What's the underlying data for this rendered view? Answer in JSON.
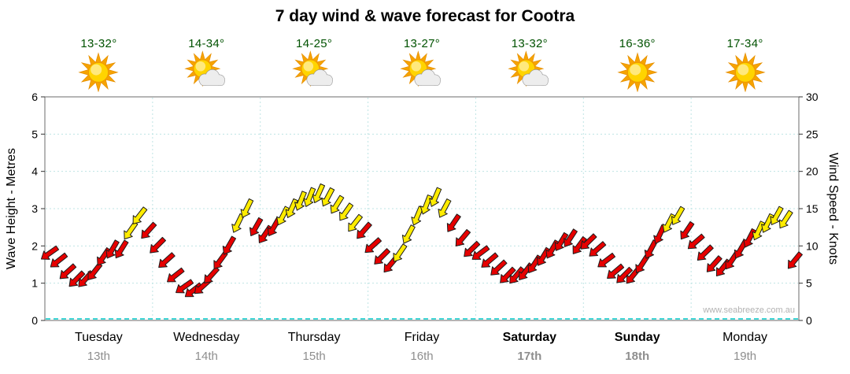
{
  "title": "7 day wind & wave forecast for Cootra",
  "watermark": "www.seabreeze.com.au",
  "axes": {
    "left_label": "Wave Height - Metres",
    "right_label": "Wind Speed - Knots",
    "left_ticks": [
      0,
      1,
      2,
      3,
      4,
      5,
      6
    ],
    "right_ticks": [
      0,
      5,
      10,
      15,
      20,
      25,
      30
    ]
  },
  "days": [
    {
      "name": "Tuesday",
      "date": "13th",
      "temp": "13-32°",
      "icon": "sunny",
      "weekend": false
    },
    {
      "name": "Wednesday",
      "date": "14th",
      "temp": "14-34°",
      "icon": "sun-cloud",
      "weekend": false
    },
    {
      "name": "Thursday",
      "date": "15th",
      "temp": "14-25°",
      "icon": "sun-cloud",
      "weekend": false
    },
    {
      "name": "Friday",
      "date": "16th",
      "temp": "13-27°",
      "icon": "sun-cloud",
      "weekend": false
    },
    {
      "name": "Saturday",
      "date": "17th",
      "temp": "13-32°",
      "icon": "sun-cloud",
      "weekend": true
    },
    {
      "name": "Sunday",
      "date": "18th",
      "temp": "16-36°",
      "icon": "sunny",
      "weekend": true
    },
    {
      "name": "Monday",
      "date": "19th",
      "temp": "17-34°",
      "icon": "sunny",
      "weekend": false
    }
  ],
  "chart_data": {
    "type": "scatter",
    "subtype": "wind-direction-arrows",
    "title": "7 day wind & wave forecast for Cootra",
    "x_categories": [
      "Tuesday 13th",
      "Wednesday 14th",
      "Thursday 15th",
      "Friday 16th",
      "Saturday 17th",
      "Sunday 18th",
      "Monday 19th"
    ],
    "points_per_day": 12,
    "y_left": {
      "label": "Wave Height - Metres",
      "range": [
        0,
        6
      ],
      "ticks": [
        0,
        1,
        2,
        3,
        4,
        5,
        6
      ]
    },
    "y_right": {
      "label": "Wind Speed - Knots",
      "range": [
        0,
        30
      ],
      "ticks": [
        0,
        5,
        10,
        15,
        20,
        25,
        30
      ]
    },
    "wind_by_day": [
      {
        "day": "Tuesday",
        "knots": [
          9,
          8,
          6.5,
          5.5,
          5.5,
          6.5,
          8.5,
          9.5,
          9.5,
          12,
          14,
          12
        ],
        "direction_deg": [
          235,
          232,
          228,
          225,
          222,
          218,
          214,
          210,
          212,
          215,
          218,
          222
        ],
        "color": [
          "red",
          "red",
          "red",
          "red",
          "red",
          "red",
          "red",
          "red",
          "red",
          "yellow",
          "yellow",
          "red"
        ]
      },
      {
        "day": "Wednesday",
        "knots": [
          10,
          8,
          6,
          4.5,
          4,
          4.5,
          6,
          8,
          10,
          13,
          15,
          12.5
        ],
        "direction_deg": [
          225,
          228,
          232,
          235,
          232,
          228,
          222,
          216,
          210,
          206,
          206,
          210
        ],
        "color": [
          "red",
          "red",
          "red",
          "red",
          "red",
          "red",
          "red",
          "red",
          "red",
          "yellow",
          "yellow",
          "red"
        ]
      },
      {
        "day": "Thursday",
        "knots": [
          11.5,
          12.5,
          14,
          15,
          16,
          16.5,
          17,
          16.5,
          15.5,
          14.5,
          13,
          12
        ],
        "direction_deg": [
          214,
          210,
          207,
          204,
          202,
          202,
          204,
          208,
          212,
          215,
          218,
          221
        ],
        "color": [
          "red",
          "red",
          "yellow",
          "yellow",
          "yellow",
          "yellow",
          "yellow",
          "yellow",
          "yellow",
          "yellow",
          "yellow",
          "red"
        ]
      },
      {
        "day": "Friday",
        "knots": [
          10,
          8.5,
          7.5,
          9,
          11.5,
          14,
          15.5,
          16.5,
          15,
          13,
          11,
          9.5
        ],
        "direction_deg": [
          228,
          225,
          220,
          214,
          208,
          203,
          201,
          203,
          208,
          214,
          220,
          226
        ],
        "color": [
          "red",
          "red",
          "red",
          "yellow",
          "yellow",
          "yellow",
          "yellow",
          "yellow",
          "yellow",
          "red",
          "red",
          "red"
        ]
      },
      {
        "day": "Saturday",
        "knots": [
          9,
          8,
          7,
          6,
          6,
          6.5,
          7.5,
          8.5,
          9.5,
          10.5,
          11,
          10
        ],
        "direction_deg": [
          233,
          230,
          227,
          224,
          220,
          217,
          213,
          211,
          210,
          211,
          213,
          216
        ],
        "color": [
          "red",
          "red",
          "red",
          "red",
          "red",
          "red",
          "red",
          "red",
          "red",
          "red",
          "red",
          "red"
        ]
      },
      {
        "day": "Sunday",
        "knots": [
          10.5,
          9.5,
          8,
          6.5,
          6,
          6,
          7.5,
          9.5,
          11.5,
          13,
          14,
          12
        ],
        "direction_deg": [
          226,
          229,
          233,
          230,
          225,
          219,
          213,
          208,
          205,
          207,
          210,
          214
        ],
        "color": [
          "red",
          "red",
          "red",
          "red",
          "red",
          "red",
          "red",
          "red",
          "red",
          "yellow",
          "yellow",
          "red"
        ]
      },
      {
        "day": "Monday",
        "knots": [
          10.5,
          9,
          7.5,
          7,
          8,
          9.5,
          11,
          12,
          13,
          14,
          13.5,
          8
        ],
        "direction_deg": [
          229,
          226,
          222,
          218,
          214,
          210,
          207,
          205,
          206,
          209,
          213,
          219
        ],
        "color": [
          "red",
          "red",
          "red",
          "red",
          "red",
          "red",
          "red",
          "yellow",
          "yellow",
          "yellow",
          "yellow",
          "red"
        ]
      }
    ]
  },
  "colors": {
    "arrow_red": "#e60000",
    "arrow_yellow": "#ffec00",
    "arrow_outline": "#1c1c1c",
    "grid": "#bfe4e4",
    "zero_line": "#00c8c8",
    "border": "#6b6b6b",
    "tick_text": "#000000",
    "temp_text": "#005200",
    "date_text": "#8e8e8e",
    "watermark_text": "#b3b3b3"
  }
}
